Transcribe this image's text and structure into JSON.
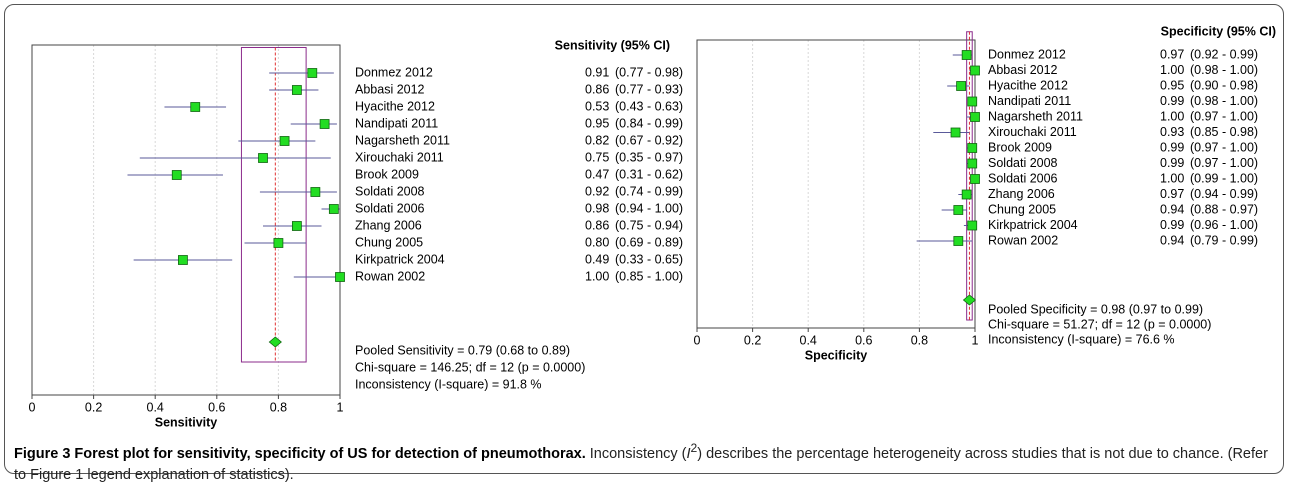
{
  "chart_data": [
    {
      "type": "forest",
      "xlabel": "Sensitivity",
      "header": "Sensitivity (95% CI)",
      "xlim": [
        0,
        1
      ],
      "xticks": [
        0,
        0.2,
        0.4,
        0.6,
        0.8,
        1
      ],
      "grid": true,
      "marker_color": "#22dd22",
      "ci_color": "#5a5a9a",
      "pooled_line_color": "#8b2b8b",
      "pooled_dash_color": "#e03030",
      "categories": [
        "Donmez 2012",
        "Abbasi 2012",
        "Hyacithe 2012",
        "Nandipati 2011",
        "Nagarsheth 2011",
        "Xirouchaki 2011",
        "Brook 2009",
        "Soldati 2008",
        "Soldati 2006",
        "Zhang 2006",
        "Chung 2005",
        "Kirkpatrick 2004",
        "Rowan 2002"
      ],
      "values": [
        0.91,
        0.86,
        0.53,
        0.95,
        0.82,
        0.75,
        0.47,
        0.92,
        0.98,
        0.86,
        0.8,
        0.49,
        1.0
      ],
      "value_labels": [
        "0.91",
        "0.86",
        "0.53",
        "0.95",
        "0.82",
        "0.75",
        "0.47",
        "0.92",
        "0.98",
        "0.86",
        "0.80",
        "0.49",
        "1.00"
      ],
      "lower": [
        0.77,
        0.77,
        0.43,
        0.84,
        0.67,
        0.35,
        0.31,
        0.74,
        0.94,
        0.75,
        0.69,
        0.33,
        0.85
      ],
      "upper": [
        0.98,
        0.93,
        0.63,
        0.99,
        0.92,
        0.97,
        0.62,
        0.99,
        1.0,
        0.94,
        0.89,
        0.65,
        1.0
      ],
      "ci_labels": [
        "(0.77 - 0.98)",
        "(0.77 - 0.93)",
        "(0.43 - 0.63)",
        "(0.84 - 0.99)",
        "(0.67 - 0.92)",
        "(0.35 - 0.97)",
        "(0.31 - 0.62)",
        "(0.74 - 0.99)",
        "(0.94 - 1.00)",
        "(0.75 - 0.94)",
        "(0.69 - 0.89)",
        "(0.33 - 0.65)",
        "(0.85 - 1.00)"
      ],
      "pooled_value": 0.79,
      "pooled_lower": 0.68,
      "pooled_upper": 0.89,
      "pooled_text": "Pooled Sensitivity = 0.79 (0.68 to 0.89)",
      "chi_text": "Chi-square = 146.25; df =  12 (p = 0.0000)",
      "inconsistency_text": "Inconsistency (I-square) = 91.8 %"
    },
    {
      "type": "forest",
      "xlabel": "Specificity",
      "header": "Specificity (95% CI)",
      "xlim": [
        0,
        1
      ],
      "xticks": [
        0,
        0.2,
        0.4,
        0.6,
        0.8,
        1
      ],
      "grid": true,
      "marker_color": "#22dd22",
      "ci_color": "#5a5a9a",
      "pooled_line_color": "#8b2b8b",
      "pooled_dash_color": "#e03030",
      "categories": [
        "Donmez 2012",
        "Abbasi 2012",
        "Hyacithe 2012",
        "Nandipati 2011",
        "Nagarsheth 2011",
        "Xirouchaki 2011",
        "Brook 2009",
        "Soldati 2008",
        "Soldati 2006",
        "Zhang 2006",
        "Chung 2005",
        "Kirkpatrick 2004",
        "Rowan 2002"
      ],
      "values": [
        0.97,
        1.0,
        0.95,
        0.99,
        1.0,
        0.93,
        0.99,
        0.99,
        1.0,
        0.97,
        0.94,
        0.99,
        0.94
      ],
      "value_labels": [
        "0.97",
        "1.00",
        "0.95",
        "0.99",
        "1.00",
        "0.93",
        "0.99",
        "0.99",
        "1.00",
        "0.97",
        "0.94",
        "0.99",
        "0.94"
      ],
      "lower": [
        0.92,
        0.98,
        0.9,
        0.98,
        0.97,
        0.85,
        0.97,
        0.97,
        0.99,
        0.94,
        0.88,
        0.96,
        0.79
      ],
      "upper": [
        0.99,
        1.0,
        0.98,
        1.0,
        1.0,
        0.98,
        1.0,
        1.0,
        1.0,
        0.99,
        0.97,
        1.0,
        0.99
      ],
      "ci_labels": [
        "(0.92 - 0.99)",
        "(0.98 - 1.00)",
        "(0.90 - 0.98)",
        "(0.98 - 1.00)",
        "(0.97 - 1.00)",
        "(0.85 - 0.98)",
        "(0.97 - 1.00)",
        "(0.97 - 1.00)",
        "(0.99 - 1.00)",
        "(0.94 - 0.99)",
        "(0.88 - 0.97)",
        "(0.96 - 1.00)",
        "(0.79 - 0.99)"
      ],
      "pooled_value": 0.98,
      "pooled_lower": 0.97,
      "pooled_upper": 0.99,
      "pooled_text": "Pooled Specificity = 0.98 (0.97 to 0.99)",
      "chi_text": "Chi-square = 51.27; df =  12 (p = 0.0000)",
      "inconsistency_text": "Inconsistency (I-square) = 76.6 %"
    }
  ],
  "caption": {
    "title": "Figure 3 Forest plot for sensitivity, specificity of US for detection of pneumothorax.",
    "text_1": " Inconsistency (",
    "symbol": "I",
    "sup": "2",
    "text_2": ") describes the percentage heterogeneity across studies that is not due to chance. (Refer to Figure 1 legend explanation of statistics)."
  }
}
